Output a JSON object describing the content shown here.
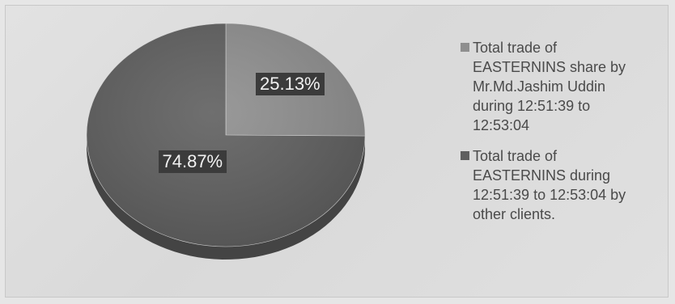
{
  "chart_data": {
    "type": "pie",
    "title": "",
    "slices": [
      {
        "label": "Total trade of\nEASTERNINS share by\nMr.Md.Jashim Uddin\nduring 12:51:39  to\n12:53:04",
        "value": 25.13,
        "display": "25.13%",
        "color": "#8e8e8e"
      },
      {
        "label": "Total trade of\nEASTERNINS during\n12:51:39  to 12:53:04 by\nother clients.",
        "value": 74.87,
        "display": "74.87%",
        "color": "#5f5f5f"
      }
    ],
    "legend_position": "right"
  }
}
